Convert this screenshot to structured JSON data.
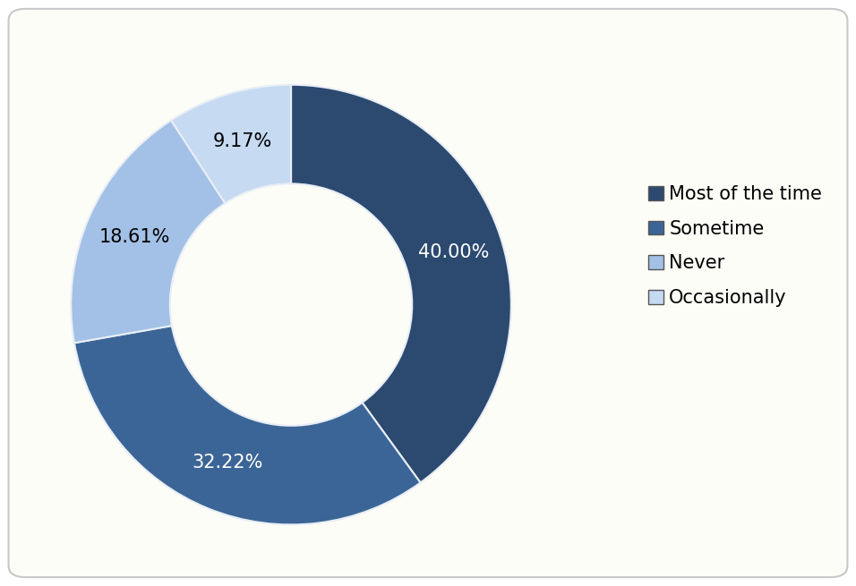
{
  "chart_data": {
    "type": "pie",
    "categories": [
      "Most of the time",
      "Sometime",
      "Never",
      "Occasionally"
    ],
    "values": [
      40.0,
      32.22,
      18.61,
      9.17
    ],
    "value_labels": [
      "40.00%",
      "32.22%",
      "18.61%",
      "9.17%"
    ],
    "colors": [
      "#2c4a70",
      "#3b6596",
      "#a3c1e6",
      "#c6daf2"
    ],
    "data_labels": true,
    "legend": "right"
  }
}
